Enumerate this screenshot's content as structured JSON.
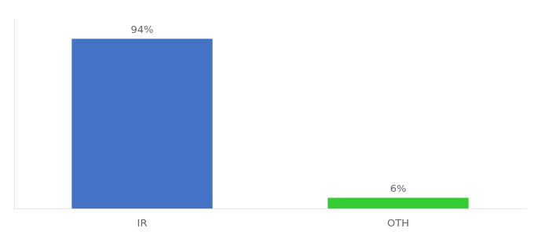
{
  "chart_data": {
    "type": "bar",
    "categories": [
      "IR",
      "OTH"
    ],
    "values": [
      94,
      6
    ],
    "value_labels": [
      "94%",
      "6%"
    ],
    "colors": [
      "#4472c4",
      "#33cc33"
    ],
    "ylim": [
      0,
      105
    ],
    "yticks": [],
    "grid": false,
    "data_labels": true,
    "tick_labels": "x"
  }
}
